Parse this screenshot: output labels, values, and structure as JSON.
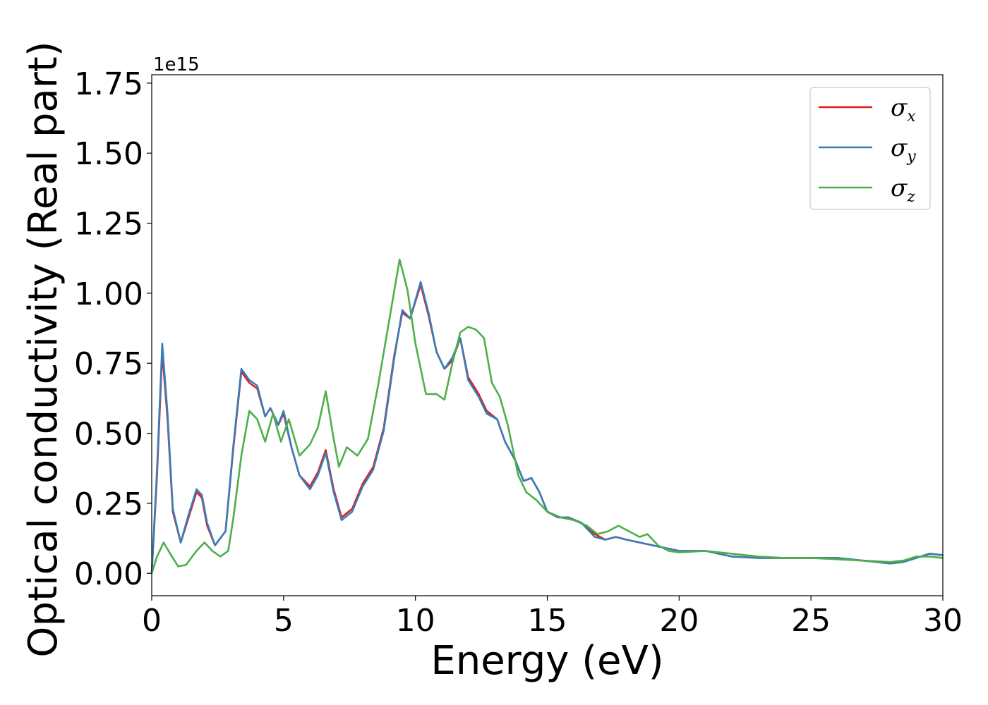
{
  "chart_data": {
    "type": "line",
    "title": "",
    "xlabel": "Energy (eV)",
    "ylabel": "Optical conductivity (Real part)",
    "y_offset_text": "1e15",
    "xlim": [
      0,
      30
    ],
    "ylim": [
      -0.08,
      1.78
    ],
    "x_ticks": [
      0,
      5,
      10,
      15,
      20,
      25,
      30
    ],
    "x_tick_labels": [
      "0",
      "5",
      "10",
      "15",
      "20",
      "25",
      "30"
    ],
    "y_ticks": [
      0.0,
      0.25,
      0.5,
      0.75,
      1.0,
      1.25,
      1.5,
      1.75
    ],
    "y_tick_labels": [
      "0.00",
      "0.25",
      "0.50",
      "0.75",
      "1.00",
      "1.25",
      "1.50",
      "1.75"
    ],
    "grid": false,
    "legend_position": "top-right",
    "series": [
      {
        "name": "σx",
        "symbol": "σ",
        "subscript": "x",
        "color": "#e41a1c",
        "points": [
          [
            0,
            0.0
          ],
          [
            0.2,
            0.35
          ],
          [
            0.4,
            0.79
          ],
          [
            0.6,
            0.55
          ],
          [
            0.8,
            0.22
          ],
          [
            1.1,
            0.11
          ],
          [
            1.4,
            0.2
          ],
          [
            1.7,
            0.29
          ],
          [
            1.9,
            0.27
          ],
          [
            2.1,
            0.17
          ],
          [
            2.4,
            0.1
          ],
          [
            2.8,
            0.15
          ],
          [
            3.1,
            0.45
          ],
          [
            3.4,
            0.72
          ],
          [
            3.7,
            0.68
          ],
          [
            4.0,
            0.66
          ],
          [
            4.3,
            0.56
          ],
          [
            4.5,
            0.59
          ],
          [
            4.8,
            0.53
          ],
          [
            5.0,
            0.57
          ],
          [
            5.3,
            0.45
          ],
          [
            5.6,
            0.35
          ],
          [
            6.0,
            0.31
          ],
          [
            6.3,
            0.36
          ],
          [
            6.6,
            0.44
          ],
          [
            6.9,
            0.3
          ],
          [
            7.2,
            0.2
          ],
          [
            7.6,
            0.23
          ],
          [
            8.0,
            0.32
          ],
          [
            8.4,
            0.38
          ],
          [
            8.8,
            0.52
          ],
          [
            9.2,
            0.78
          ],
          [
            9.5,
            0.93
          ],
          [
            9.8,
            0.91
          ],
          [
            10.2,
            1.03
          ],
          [
            10.5,
            0.92
          ],
          [
            10.8,
            0.79
          ],
          [
            11.1,
            0.73
          ],
          [
            11.4,
            0.76
          ],
          [
            11.7,
            0.84
          ],
          [
            12.0,
            0.7
          ],
          [
            12.4,
            0.64
          ],
          [
            12.7,
            0.58
          ],
          [
            13.1,
            0.55
          ],
          [
            13.4,
            0.47
          ],
          [
            13.8,
            0.4
          ],
          [
            14.1,
            0.33
          ],
          [
            14.4,
            0.34
          ],
          [
            14.7,
            0.29
          ],
          [
            15.0,
            0.22
          ],
          [
            15.4,
            0.2
          ],
          [
            15.8,
            0.2
          ],
          [
            16.3,
            0.18
          ],
          [
            16.8,
            0.14
          ],
          [
            17.2,
            0.12
          ],
          [
            17.6,
            0.13
          ],
          [
            18.0,
            0.12
          ],
          [
            18.5,
            0.11
          ],
          [
            19.0,
            0.1
          ],
          [
            19.5,
            0.09
          ],
          [
            20.0,
            0.08
          ],
          [
            21.0,
            0.08
          ],
          [
            22.0,
            0.06
          ],
          [
            23.0,
            0.055
          ],
          [
            24.0,
            0.055
          ],
          [
            25.0,
            0.055
          ],
          [
            26.0,
            0.055
          ],
          [
            27.0,
            0.045
          ],
          [
            28.0,
            0.04
          ],
          [
            28.5,
            0.045
          ],
          [
            29.0,
            0.055
          ],
          [
            29.5,
            0.07
          ],
          [
            30.0,
            0.065
          ]
        ]
      },
      {
        "name": "σy",
        "symbol": "σ",
        "subscript": "y",
        "color": "#377eb8",
        "points": [
          [
            0,
            0.0
          ],
          [
            0.2,
            0.37
          ],
          [
            0.4,
            0.82
          ],
          [
            0.6,
            0.57
          ],
          [
            0.8,
            0.23
          ],
          [
            1.1,
            0.11
          ],
          [
            1.4,
            0.21
          ],
          [
            1.7,
            0.3
          ],
          [
            1.9,
            0.28
          ],
          [
            2.1,
            0.18
          ],
          [
            2.4,
            0.1
          ],
          [
            2.8,
            0.15
          ],
          [
            3.1,
            0.46
          ],
          [
            3.4,
            0.73
          ],
          [
            3.7,
            0.69
          ],
          [
            4.0,
            0.67
          ],
          [
            4.3,
            0.56
          ],
          [
            4.5,
            0.59
          ],
          [
            4.8,
            0.53
          ],
          [
            5.0,
            0.58
          ],
          [
            5.3,
            0.45
          ],
          [
            5.6,
            0.35
          ],
          [
            6.0,
            0.3
          ],
          [
            6.3,
            0.35
          ],
          [
            6.6,
            0.43
          ],
          [
            6.9,
            0.29
          ],
          [
            7.2,
            0.19
          ],
          [
            7.6,
            0.22
          ],
          [
            8.0,
            0.31
          ],
          [
            8.4,
            0.37
          ],
          [
            8.8,
            0.51
          ],
          [
            9.2,
            0.77
          ],
          [
            9.5,
            0.94
          ],
          [
            9.8,
            0.91
          ],
          [
            10.2,
            1.04
          ],
          [
            10.5,
            0.93
          ],
          [
            10.8,
            0.79
          ],
          [
            11.1,
            0.73
          ],
          [
            11.4,
            0.77
          ],
          [
            11.7,
            0.84
          ],
          [
            12.0,
            0.69
          ],
          [
            12.4,
            0.63
          ],
          [
            12.7,
            0.57
          ],
          [
            13.1,
            0.55
          ],
          [
            13.4,
            0.47
          ],
          [
            13.8,
            0.4
          ],
          [
            14.1,
            0.33
          ],
          [
            14.4,
            0.34
          ],
          [
            14.7,
            0.29
          ],
          [
            15.0,
            0.22
          ],
          [
            15.4,
            0.2
          ],
          [
            15.8,
            0.2
          ],
          [
            16.3,
            0.18
          ],
          [
            16.8,
            0.13
          ],
          [
            17.2,
            0.12
          ],
          [
            17.6,
            0.13
          ],
          [
            18.0,
            0.12
          ],
          [
            18.5,
            0.11
          ],
          [
            19.0,
            0.1
          ],
          [
            19.5,
            0.09
          ],
          [
            20.0,
            0.08
          ],
          [
            21.0,
            0.08
          ],
          [
            22.0,
            0.06
          ],
          [
            23.0,
            0.055
          ],
          [
            24.0,
            0.055
          ],
          [
            25.0,
            0.055
          ],
          [
            26.0,
            0.055
          ],
          [
            27.0,
            0.045
          ],
          [
            28.0,
            0.035
          ],
          [
            28.5,
            0.04
          ],
          [
            29.0,
            0.055
          ],
          [
            29.5,
            0.07
          ],
          [
            30.0,
            0.065
          ]
        ]
      },
      {
        "name": "σz",
        "symbol": "σ",
        "subscript": "z",
        "color": "#4daf4a",
        "points": [
          [
            0,
            0.0
          ],
          [
            0.2,
            0.06
          ],
          [
            0.45,
            0.11
          ],
          [
            0.7,
            0.07
          ],
          [
            1.0,
            0.025
          ],
          [
            1.3,
            0.03
          ],
          [
            1.7,
            0.08
          ],
          [
            2.0,
            0.11
          ],
          [
            2.3,
            0.08
          ],
          [
            2.6,
            0.06
          ],
          [
            2.9,
            0.08
          ],
          [
            3.1,
            0.2
          ],
          [
            3.4,
            0.42
          ],
          [
            3.7,
            0.58
          ],
          [
            4.0,
            0.55
          ],
          [
            4.3,
            0.47
          ],
          [
            4.6,
            0.57
          ],
          [
            4.9,
            0.47
          ],
          [
            5.2,
            0.55
          ],
          [
            5.6,
            0.42
          ],
          [
            6.0,
            0.46
          ],
          [
            6.3,
            0.52
          ],
          [
            6.6,
            0.65
          ],
          [
            6.9,
            0.48
          ],
          [
            7.1,
            0.38
          ],
          [
            7.4,
            0.45
          ],
          [
            7.8,
            0.42
          ],
          [
            8.2,
            0.48
          ],
          [
            8.6,
            0.68
          ],
          [
            9.0,
            0.9
          ],
          [
            9.4,
            1.12
          ],
          [
            9.7,
            1.01
          ],
          [
            10.0,
            0.82
          ],
          [
            10.4,
            0.64
          ],
          [
            10.8,
            0.64
          ],
          [
            11.1,
            0.62
          ],
          [
            11.4,
            0.75
          ],
          [
            11.7,
            0.86
          ],
          [
            12.0,
            0.88
          ],
          [
            12.3,
            0.87
          ],
          [
            12.6,
            0.84
          ],
          [
            12.9,
            0.68
          ],
          [
            13.2,
            0.63
          ],
          [
            13.5,
            0.53
          ],
          [
            13.9,
            0.35
          ],
          [
            14.2,
            0.29
          ],
          [
            14.6,
            0.26
          ],
          [
            15.0,
            0.22
          ],
          [
            15.5,
            0.2
          ],
          [
            16.0,
            0.19
          ],
          [
            16.5,
            0.17
          ],
          [
            16.9,
            0.14
          ],
          [
            17.3,
            0.15
          ],
          [
            17.7,
            0.17
          ],
          [
            18.1,
            0.15
          ],
          [
            18.5,
            0.13
          ],
          [
            18.8,
            0.14
          ],
          [
            19.2,
            0.1
          ],
          [
            19.6,
            0.08
          ],
          [
            20.0,
            0.075
          ],
          [
            21.0,
            0.08
          ],
          [
            22.0,
            0.07
          ],
          [
            23.0,
            0.06
          ],
          [
            24.0,
            0.055
          ],
          [
            25.0,
            0.055
          ],
          [
            26.0,
            0.05
          ],
          [
            27.0,
            0.045
          ],
          [
            28.0,
            0.04
          ],
          [
            28.5,
            0.045
          ],
          [
            29.0,
            0.06
          ],
          [
            29.5,
            0.06
          ],
          [
            30.0,
            0.055
          ]
        ]
      }
    ]
  }
}
